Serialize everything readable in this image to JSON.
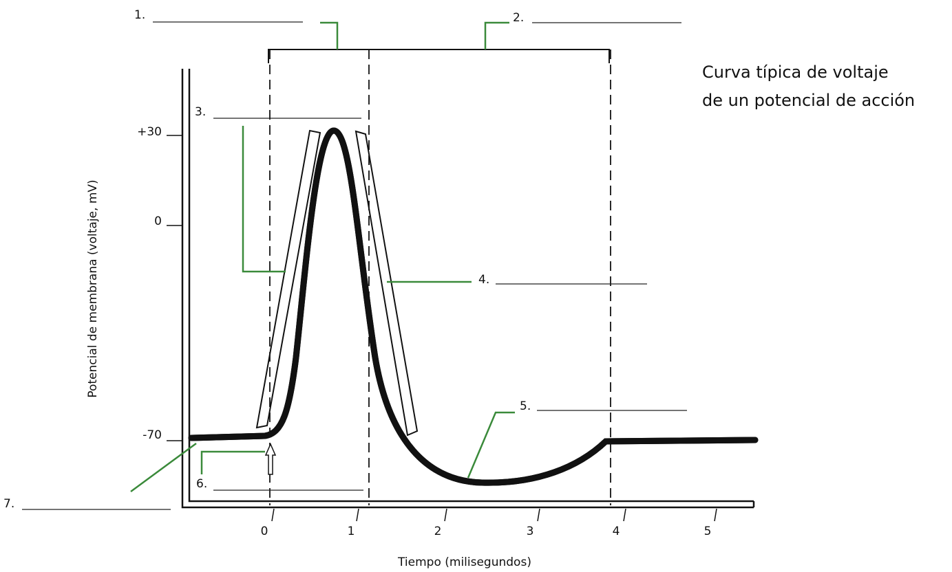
{
  "title": [
    "Curva típica de voltaje",
    "de un potencial de acción"
  ],
  "y_axis_label": "Potencial de membrana (voltaje, mV)",
  "x_axis_label": "Tiempo (milisegundos)",
  "y_tick_labels": [
    "+30",
    "0",
    "-70"
  ],
  "x_tick_labels": [
    "0",
    "1",
    "2",
    "3",
    "4",
    "5"
  ],
  "blanks": [
    "1.",
    "2.",
    "3.",
    "4.",
    "5.",
    "6.",
    "7."
  ]
}
